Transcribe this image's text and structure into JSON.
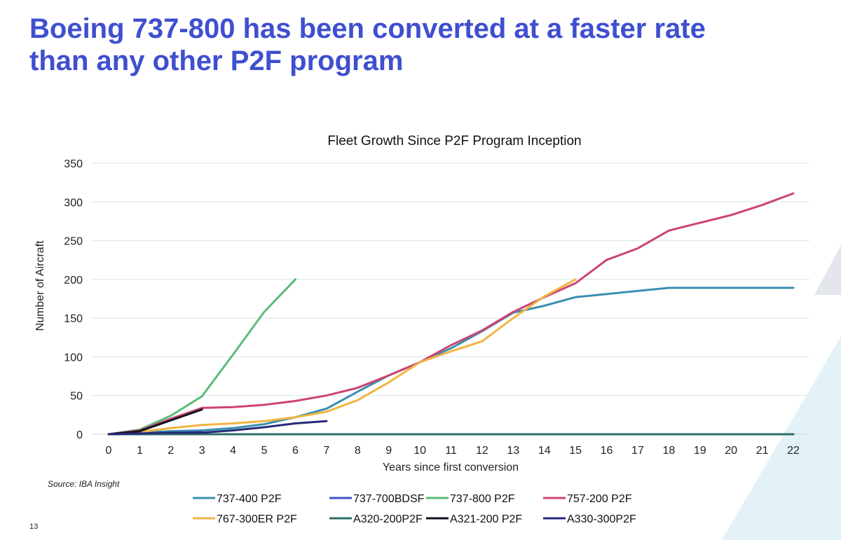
{
  "slide": {
    "title_line1": "Boeing 737-800 has been converted at a faster rate",
    "title_line2": "than any other P2F program",
    "source": "Source: IBA Insight",
    "page_number": "13",
    "title_color": "#3f4fd0"
  },
  "chart_data": {
    "type": "line",
    "title": "Fleet Growth Since P2F Program Inception",
    "xlabel": "Years since first conversion",
    "ylabel": "Number of Aircraft",
    "xlim": [
      0,
      22
    ],
    "ylim": [
      0,
      350
    ],
    "x_ticks": [
      0,
      1,
      2,
      3,
      4,
      5,
      6,
      7,
      8,
      9,
      10,
      11,
      12,
      13,
      14,
      15,
      16,
      17,
      18,
      19,
      20,
      21,
      22
    ],
    "y_ticks": [
      0,
      50,
      100,
      150,
      200,
      250,
      300,
      350
    ],
    "grid": "horizontal",
    "legend_position": "bottom",
    "series": [
      {
        "name": "737-400 P2F",
        "color": "#3a8fb0",
        "x": [
          0,
          1,
          2,
          3,
          4,
          5,
          6,
          7,
          8,
          9,
          10,
          11,
          12,
          13,
          14,
          15,
          16,
          17,
          18,
          19,
          20,
          21,
          22
        ],
        "y": [
          0,
          2,
          4,
          5,
          8,
          13,
          22,
          33,
          55,
          76,
          93,
          111,
          133,
          157,
          166,
          177,
          181,
          185,
          189,
          189,
          189,
          189,
          189
        ]
      },
      {
        "name": "737-700BDSF",
        "color": "#4452c8",
        "x": [
          0,
          1,
          2,
          3
        ],
        "y": [
          0,
          1,
          2,
          3
        ]
      },
      {
        "name": "737-800 P2F",
        "color": "#5dbb78",
        "x": [
          0,
          1,
          2,
          3,
          4,
          5,
          6
        ],
        "y": [
          0,
          6,
          24,
          49,
          103,
          158,
          200
        ]
      },
      {
        "name": "757-200 P2F",
        "color": "#cc4470",
        "x": [
          0,
          1,
          2,
          3,
          4,
          5,
          6,
          7,
          8,
          9,
          10,
          11,
          12,
          13,
          14,
          15,
          16,
          17,
          18,
          19,
          20,
          21,
          22
        ],
        "y": [
          0,
          5,
          20,
          34,
          35,
          38,
          43,
          50,
          60,
          76,
          93,
          115,
          134,
          158,
          177,
          195,
          225,
          240,
          263,
          273,
          283,
          296,
          311
        ]
      },
      {
        "name": "767-300ER P2F",
        "color": "#f2b441",
        "x": [
          0,
          1,
          2,
          3,
          4,
          5,
          6,
          7,
          8,
          9,
          10,
          11,
          12,
          13,
          14,
          15
        ],
        "y": [
          0,
          3,
          8,
          12,
          14,
          17,
          22,
          29,
          44,
          67,
          93,
          107,
          120,
          150,
          178,
          200
        ]
      },
      {
        "name": "A320-200P2F",
        "color": "#2e6e68",
        "x": [
          0,
          1,
          2,
          3,
          4,
          5,
          6,
          7,
          8,
          9,
          10,
          11,
          12,
          13,
          14,
          15,
          16,
          17,
          18,
          19,
          20,
          21,
          22
        ],
        "y": [
          0,
          0,
          0,
          0,
          0,
          0,
          0,
          0,
          0,
          0,
          0,
          0,
          0,
          0,
          0,
          0,
          0,
          0,
          0,
          0,
          0,
          0,
          0
        ]
      },
      {
        "name": "A321-200 P2F",
        "color": "#111122",
        "x": [
          0,
          1,
          2,
          3
        ],
        "y": [
          0,
          4,
          18,
          32
        ]
      },
      {
        "name": "A330-300P2F",
        "color": "#252a78",
        "x": [
          0,
          1,
          2,
          3,
          4,
          5,
          6,
          7
        ],
        "y": [
          0,
          1,
          2,
          2,
          5,
          9,
          14,
          17
        ]
      }
    ]
  }
}
